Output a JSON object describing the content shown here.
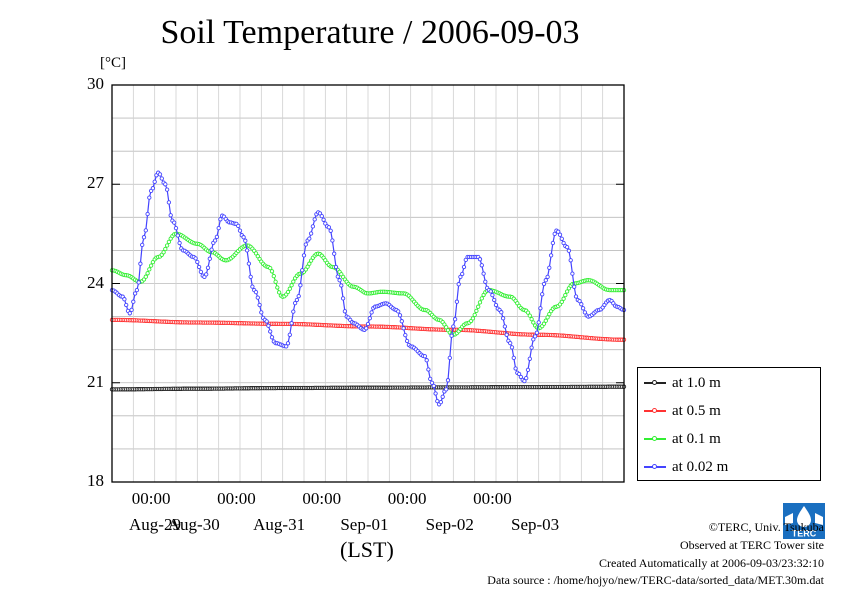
{
  "chart_data": {
    "type": "line",
    "title": "Soil Temperature / 2006-09-03",
    "ylabel": "[°C]",
    "xlabel": "(LST)",
    "ylim": [
      18,
      30
    ],
    "yticks": [
      "30",
      "27",
      "24",
      "21",
      "18"
    ],
    "x_time_labels": [
      "00:00",
      "00:00",
      "00:00",
      "00:00",
      "00:00"
    ],
    "x_date_labels": [
      "Aug-29",
      "Aug-30",
      "Aug-31",
      "Sep-01",
      "Sep-02",
      "Sep-03"
    ],
    "x_unit": "hours from Aug-28 13:00 LST",
    "xlim": [
      0,
      144
    ],
    "grid": true,
    "legend_position": "right",
    "series": [
      {
        "name": "at 1.0 m",
        "color": "#222222",
        "x": [
          0,
          24,
          48,
          72,
          96,
          120,
          144
        ],
        "y": [
          20.8,
          20.82,
          20.84,
          20.85,
          20.86,
          20.87,
          20.88
        ]
      },
      {
        "name": "at 0.5 m",
        "color": "#ff3333",
        "x": [
          0,
          24,
          48,
          72,
          96,
          120,
          144
        ],
        "y": [
          22.9,
          22.82,
          22.78,
          22.7,
          22.6,
          22.45,
          22.3
        ]
      },
      {
        "name": "at 0.1 m",
        "color": "#33ee33",
        "x": [
          0,
          4,
          8,
          13,
          18,
          24,
          28,
          32,
          38,
          44,
          48,
          53,
          58,
          62,
          68,
          72,
          76,
          82,
          88,
          92,
          96,
          100,
          106,
          112,
          116,
          120,
          125,
          130,
          134,
          140,
          144
        ],
        "y": [
          24.4,
          24.25,
          24.05,
          24.8,
          25.5,
          25.2,
          24.95,
          24.7,
          25.15,
          24.5,
          23.6,
          24.3,
          24.9,
          24.5,
          23.9,
          23.7,
          23.75,
          23.7,
          23.2,
          22.9,
          22.45,
          22.8,
          23.8,
          23.6,
          23.2,
          22.65,
          23.3,
          24.0,
          24.1,
          23.8,
          23.8
        ]
      },
      {
        "name": "at 0.02 m",
        "color": "#4444ff",
        "x": [
          0,
          3,
          5,
          7,
          9,
          11,
          13,
          15,
          17,
          20,
          23,
          26,
          29,
          31,
          33,
          35,
          37,
          40,
          43,
          46,
          49,
          52,
          55,
          58,
          61,
          64,
          66,
          68,
          71,
          74,
          77,
          80,
          84,
          88,
          90,
          92,
          94,
          96,
          98,
          100,
          103,
          106,
          109,
          112,
          114,
          116,
          119,
          122,
          125,
          128,
          131,
          134,
          137,
          140,
          142,
          144
        ],
        "y": [
          23.8,
          23.6,
          23.1,
          23.8,
          25.4,
          26.8,
          27.35,
          27.0,
          25.9,
          25.0,
          24.8,
          24.2,
          25.3,
          26.05,
          25.85,
          25.8,
          25.4,
          23.8,
          22.9,
          22.2,
          22.1,
          23.5,
          25.3,
          26.15,
          25.7,
          24.1,
          23.0,
          22.8,
          22.6,
          23.3,
          23.4,
          23.2,
          22.1,
          21.8,
          21.0,
          20.35,
          20.8,
          22.7,
          24.2,
          24.8,
          24.8,
          23.8,
          23.2,
          22.2,
          21.3,
          21.05,
          22.4,
          24.1,
          25.6,
          25.1,
          23.5,
          23.0,
          23.2,
          23.5,
          23.3,
          23.2
        ]
      }
    ]
  },
  "credits": {
    "copyright": "©TERC, Univ. Tsukuba",
    "observed": "Observed at TERC Tower site",
    "created": "Created Automatically at 2006-09-03/23:32:10",
    "source": "Data source : /home/hojyo/new/TERC-data/sorted_data/MET.30m.dat",
    "logo_text": "TERC"
  }
}
